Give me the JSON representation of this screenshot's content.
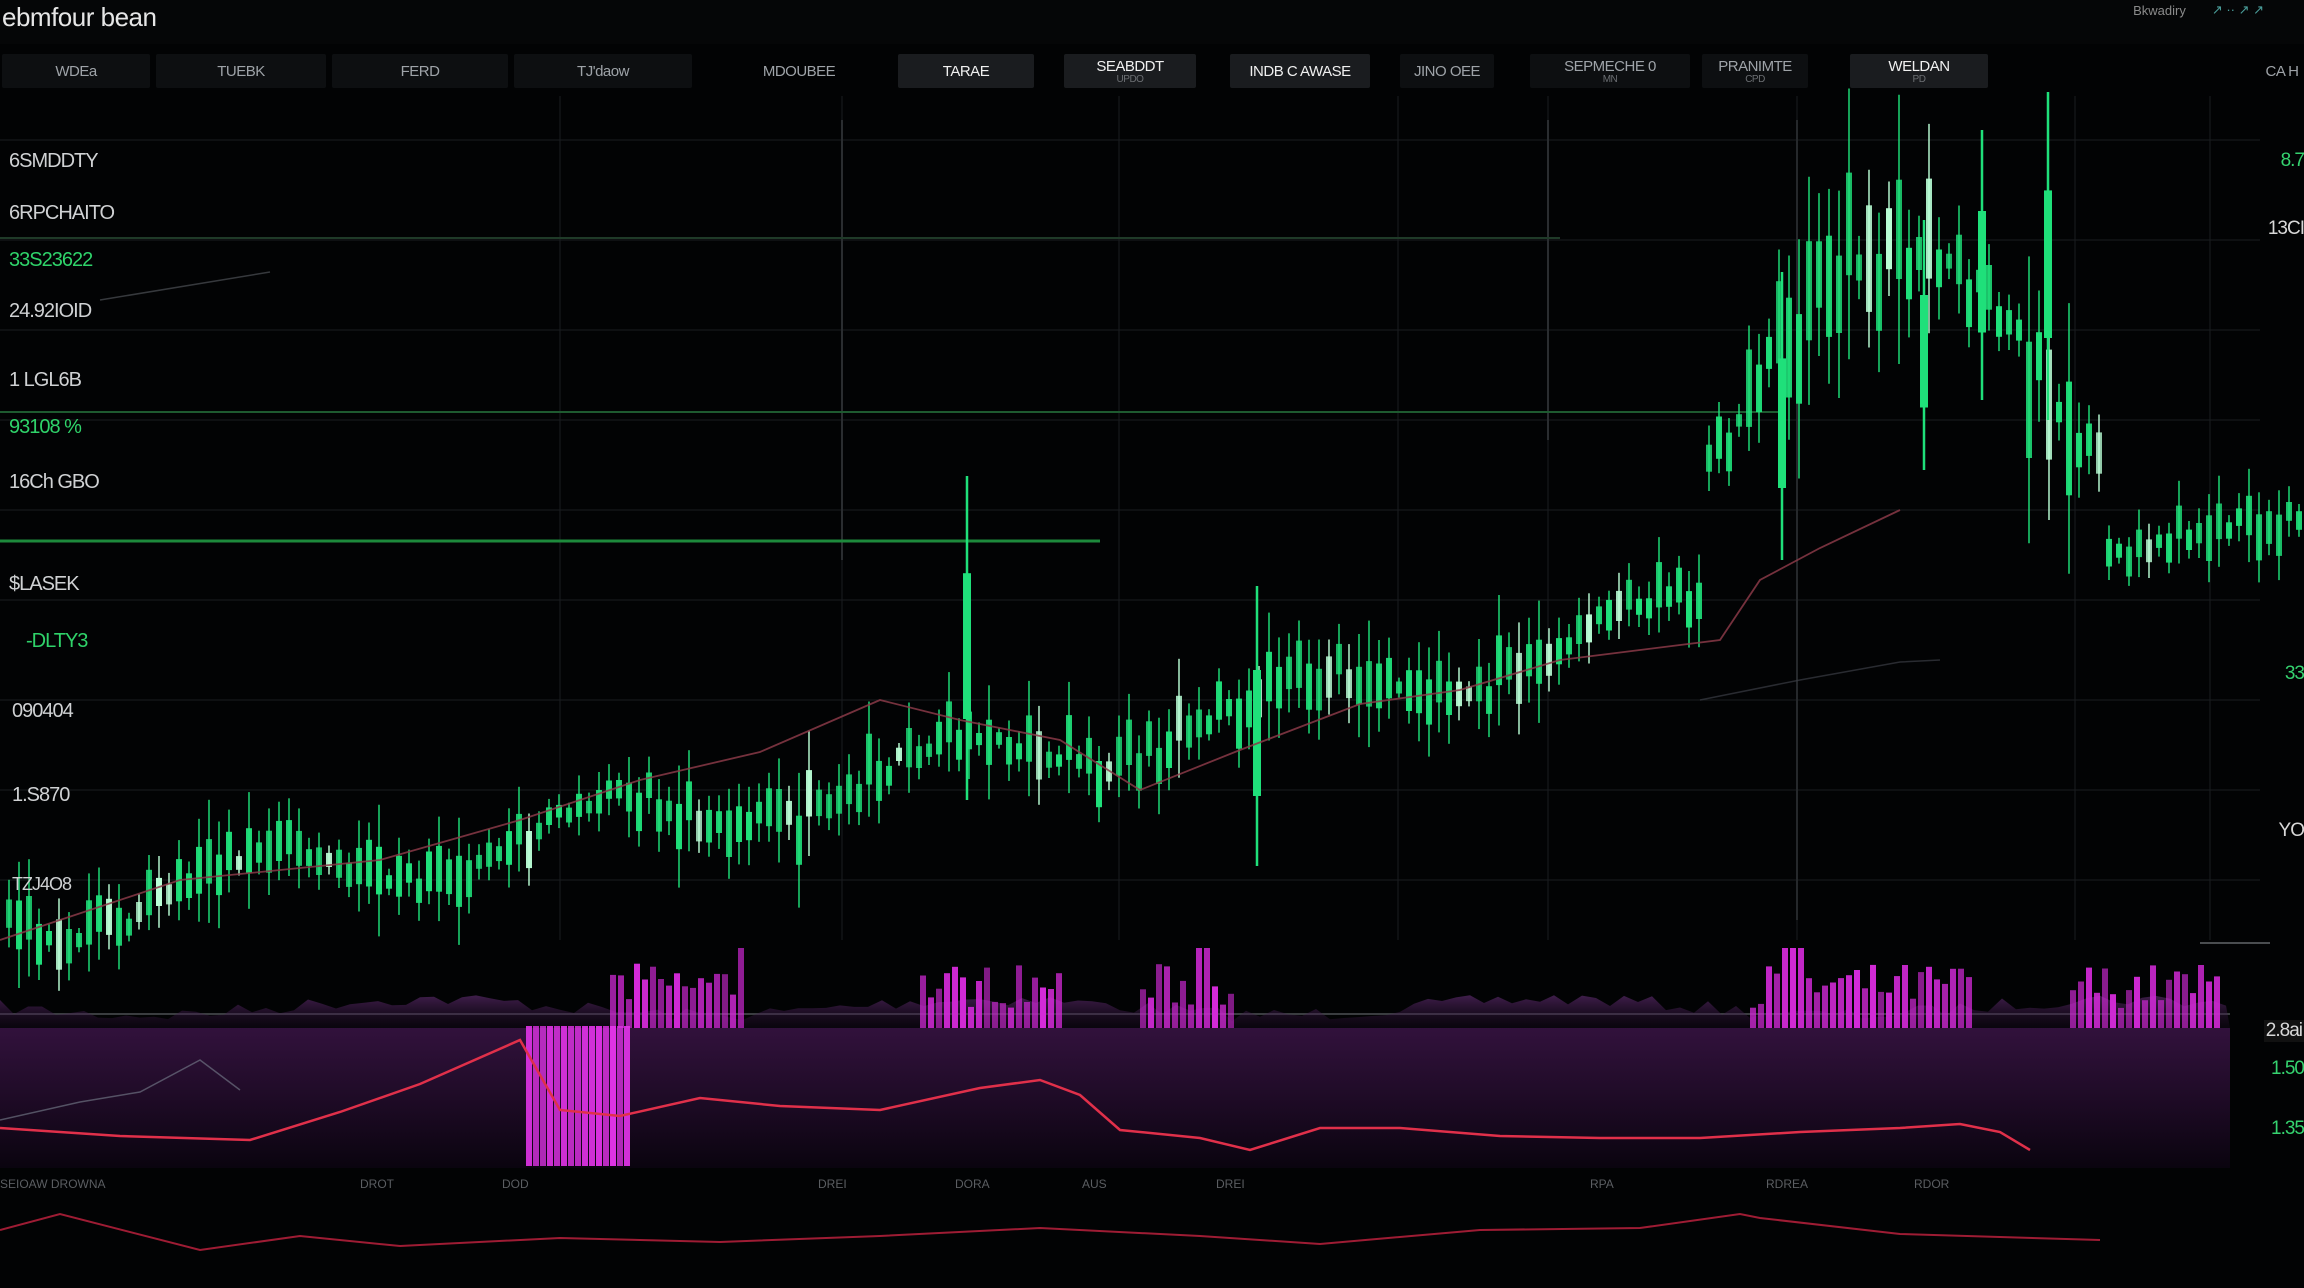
{
  "app": {
    "title": "ebmfour bean"
  },
  "titlebar_right": [
    "Bkwadiry",
    "↗ ·· ↗ ↗"
  ],
  "toolbar": {
    "buttons": [
      {
        "label": "WDEa",
        "sub": ""
      },
      {
        "label": "TUEBK",
        "sub": ""
      },
      {
        "label": "FERD",
        "sub": ""
      },
      {
        "label": "TJ'daow",
        "sub": ""
      },
      {
        "label": "MDOUBEE",
        "sub": ""
      },
      {
        "label": "TARAE",
        "sub": ""
      },
      {
        "label": "SEABDDT",
        "sub": "UPDO"
      },
      {
        "label": "INDB C AWASE",
        "sub": ""
      },
      {
        "label": "JINO OEE",
        "sub": ""
      },
      {
        "label": "SEPMECHE 0",
        "sub": "MN"
      },
      {
        "label": "PRANIMTE",
        "sub": "CPD"
      },
      {
        "label": "WELDAN",
        "sub": "PD"
      },
      {
        "label": "CA H",
        "sub": ""
      }
    ]
  },
  "price_labels_left": [
    {
      "text": "6SMDDTY",
      "color": "white"
    },
    {
      "text": "6RPCHAITO",
      "color": "white"
    },
    {
      "text": "33S23622",
      "color": "green"
    },
    {
      "text": "24.92IOID",
      "color": "white"
    },
    {
      "text": "1 LGL6B",
      "color": "white"
    },
    {
      "text": "93108 %",
      "color": "green"
    },
    {
      "text": "16Ch GBO",
      "color": "white"
    },
    {
      "text": "$LASEK",
      "color": "white"
    },
    {
      "text": "-DLTY3",
      "color": "green"
    },
    {
      "text": "090404",
      "color": "white"
    },
    {
      "text": "1.S870",
      "color": "white"
    },
    {
      "text": "TZJ4O8",
      "color": "white"
    }
  ],
  "price_labels_right": [
    {
      "text": "8.7",
      "color": "green"
    },
    {
      "text": "13CI",
      "color": "white"
    },
    {
      "text": "33",
      "color": "green"
    },
    {
      "text": "YO",
      "color": "white"
    },
    {
      "text": "2.8ai",
      "color": "white"
    },
    {
      "text": "1.50",
      "color": "green"
    },
    {
      "text": "1.35",
      "color": "green"
    }
  ],
  "time_labels": [
    "SEIOAW DROWNA",
    "DROT",
    "DOD",
    "DREI",
    "DORA",
    "AUS",
    "DREI",
    "RPA",
    "RDREA",
    "RDOR"
  ],
  "colors": {
    "background": "#020304",
    "bull_candle": "#1fe07a",
    "bull_candle_bright": "#b9ffd6",
    "volume": "#d32ad8",
    "volume_panel": "#2a0f33",
    "indicator_line": "#e0304a",
    "gridline": "#1a1d20",
    "level_line": "#1d8a3c"
  },
  "icons": [
    "trend-arrow-icon"
  ]
}
